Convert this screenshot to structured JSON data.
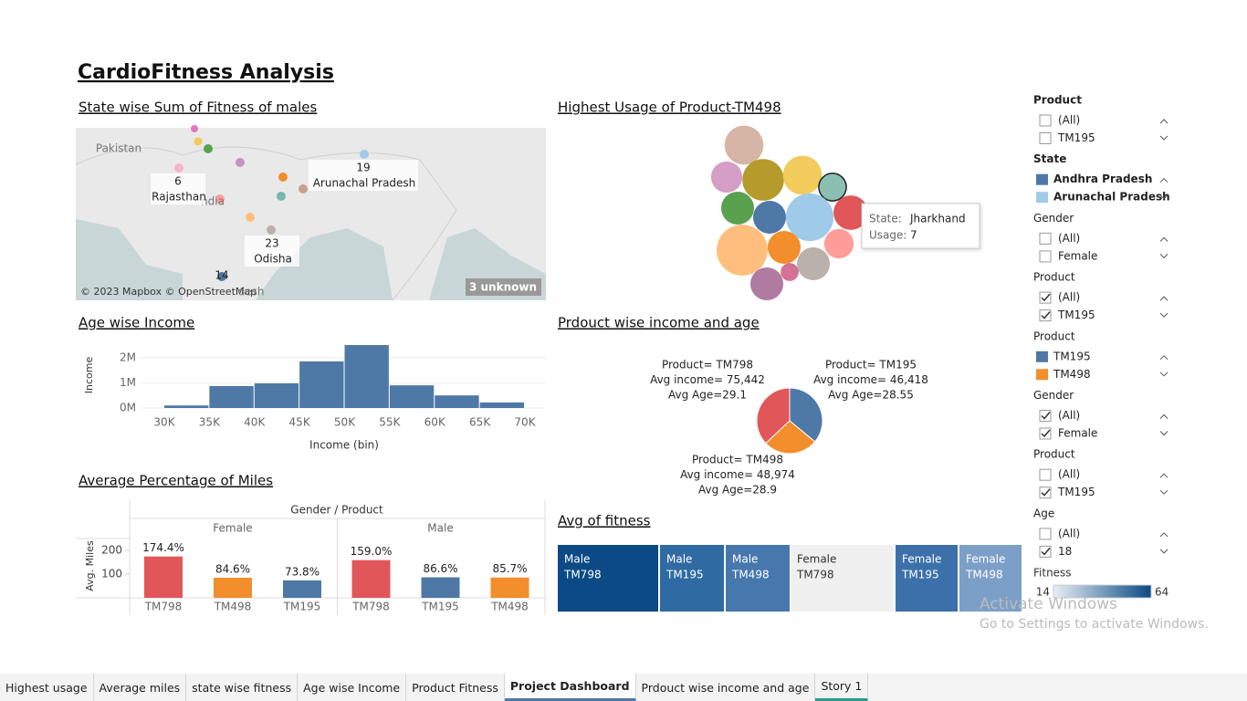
{
  "title": "CardioFitness Analysis",
  "map": {
    "title": "State wise Sum of Fitness of males",
    "places": [
      "Pakistan",
      "ndia",
      "desh"
    ],
    "labels": [
      {
        "value": 6,
        "name": "Rajasthan"
      },
      {
        "value": 19,
        "name": "Arunachal Pradesh"
      },
      {
        "value": 23,
        "name": "Odisha"
      },
      {
        "value": 14
      }
    ],
    "attribution": "© 2023 Mapbox © OpenStreetMap",
    "unknown": "3 unknown"
  },
  "chart_data": [
    {
      "type": "bubble",
      "title": "Highest Usage of Product-TM498",
      "values": [
        14,
        9,
        16,
        14,
        7,
        10,
        10,
        21,
        11,
        24,
        10,
        8,
        10,
        3,
        10
      ],
      "colors": [
        "#d7b5a6",
        "#d59ec7",
        "#b59a2c",
        "#f1cb5b",
        "#8bbfb3",
        "#59a14f",
        "#4e79a7",
        "#a0cbe8",
        "#e15759",
        "#ffbe7d",
        "#f28e2b",
        "#ff9d9a",
        "#bab0ac",
        "#d37295",
        "#b07aa1"
      ],
      "tooltip": {
        "state_label": "State:",
        "state": "Jharkhand",
        "usage_label": "Usage:",
        "usage": 7
      }
    },
    {
      "type": "histogram",
      "title": "Age wise Income",
      "ylabel": "Income",
      "xlabel": "Income (bin)",
      "bins": [
        {
          "value": 30000,
          "label": "30K"
        },
        {
          "value": 35000,
          "label": "35K"
        },
        {
          "value": 40000,
          "label": "40K"
        },
        {
          "value": 45000,
          "label": "45K"
        },
        {
          "value": 50000,
          "label": "50K"
        },
        {
          "value": 55000,
          "label": "55K"
        },
        {
          "value": 60000,
          "label": "60K"
        },
        {
          "value": 65000,
          "label": "65K"
        },
        {
          "value": 70000,
          "label": "70K"
        }
      ],
      "values": [
        100000,
        870000,
        980000,
        1850000,
        2500000,
        900000,
        500000,
        220000
      ],
      "color": "#4e79a7",
      "ylim": [
        0,
        2500000
      ],
      "yticks": [
        {
          "value": 0,
          "label": "0M"
        },
        {
          "value": 1000000,
          "label": "1M"
        },
        {
          "value": 2000000,
          "label": "2M"
        }
      ]
    },
    {
      "type": "pie",
      "title": "Prdouct wise income and age",
      "values": [
        36,
        27,
        37
      ],
      "colors": [
        "#4e79a7",
        "#f28e2b",
        "#e15759"
      ],
      "labels": [
        [
          "Product= TM195",
          "Avg income= 46,418",
          "Avg Age=28.55"
        ],
        [
          "Product= TM498",
          "Avg income= 48,974",
          "Avg Age=28.9"
        ],
        [
          "Product= TM798",
          "Avg income= 75,442",
          "Avg Age=29.1"
        ]
      ]
    },
    {
      "type": "grouped_bar",
      "title": "Average Percentage of Miles",
      "header": "Gender / Product",
      "ylabel": "Avg. Miles",
      "groups": [
        {
          "name": "Female",
          "categories": [
            "TM798",
            "TM498",
            "TM195"
          ],
          "values": [
            174.4,
            84.6,
            73.8
          ],
          "value_labels": [
            "174.4%",
            "84.6%",
            "73.8%"
          ],
          "colors": [
            "#e15759",
            "#f28e2b",
            "#4e79a7"
          ]
        },
        {
          "name": "Male",
          "categories": [
            "TM798",
            "TM195",
            "TM498"
          ],
          "values": [
            159.0,
            86.6,
            85.7
          ],
          "value_labels": [
            "159.0%",
            "86.6%",
            "85.7%"
          ],
          "colors": [
            "#e15759",
            "#4e79a7",
            "#f28e2b"
          ]
        }
      ],
      "ylim": [
        0,
        250
      ],
      "yticks": [
        100,
        200
      ]
    },
    {
      "type": "heatmap",
      "title": "Avg of fitness",
      "cells": [
        {
          "label": [
            "Male",
            "TM798"
          ],
          "value": 64,
          "color": "#0b4a84"
        },
        {
          "label": [
            "Male",
            "TM195"
          ],
          "value": 50,
          "color": "#2f6aa2"
        },
        {
          "label": [
            "Male",
            "TM498"
          ],
          "value": 46,
          "color": "#4677ad"
        },
        {
          "label": [
            "Female",
            "TM798"
          ],
          "value": 14,
          "color": "#f0f0f0"
        },
        {
          "label": [
            "Female",
            "TM195"
          ],
          "value": 48,
          "color": "#3c70aa"
        },
        {
          "label": [
            "Female",
            "TM498"
          ],
          "value": 36,
          "color": "#7c9fc8"
        }
      ],
      "legend": {
        "title": "Fitness",
        "min": 14,
        "max": 64
      }
    }
  ],
  "filters": [
    {
      "title": "Product",
      "bold": true,
      "items": [
        {
          "label": "(All)",
          "checked": false
        },
        {
          "label": "TM195",
          "checked": false
        }
      ]
    },
    {
      "title": "State",
      "bold": true,
      "items": [
        {
          "label": "Andhra Pradesh",
          "color": "#4e79a7"
        },
        {
          "label": "Arunachal Pradesh",
          "color": "#a0cbe8"
        }
      ]
    },
    {
      "title": "Gender",
      "items": [
        {
          "label": "(All)",
          "checked": false
        },
        {
          "label": "Female",
          "checked": false
        }
      ]
    },
    {
      "title": "Product",
      "items": [
        {
          "label": "(All)",
          "checked": true
        },
        {
          "label": "TM195",
          "checked": true
        }
      ]
    },
    {
      "title": "Product",
      "items": [
        {
          "label": "TM195",
          "color": "#4e79a7"
        },
        {
          "label": "TM498",
          "color": "#f28e2b"
        }
      ]
    },
    {
      "title": "Gender",
      "items": [
        {
          "label": "(All)",
          "checked": true
        },
        {
          "label": "Female",
          "checked": true
        }
      ]
    },
    {
      "title": "Product",
      "items": [
        {
          "label": "(All)",
          "checked": false
        },
        {
          "label": "TM195",
          "checked": true
        }
      ]
    },
    {
      "title": "Age",
      "items": [
        {
          "label": "(All)",
          "checked": false
        },
        {
          "label": "18",
          "checked": true
        }
      ]
    }
  ],
  "watermark": [
    "Activate Windows",
    "Go to Settings to activate Windows."
  ],
  "tabs": [
    "Highest usage",
    "Average miles",
    "state wise fitness",
    "Age wise Income",
    "Product Fitness",
    "Project Dashboard",
    "Prdouct wise income and age",
    "Story 1"
  ],
  "active_tab": 5
}
